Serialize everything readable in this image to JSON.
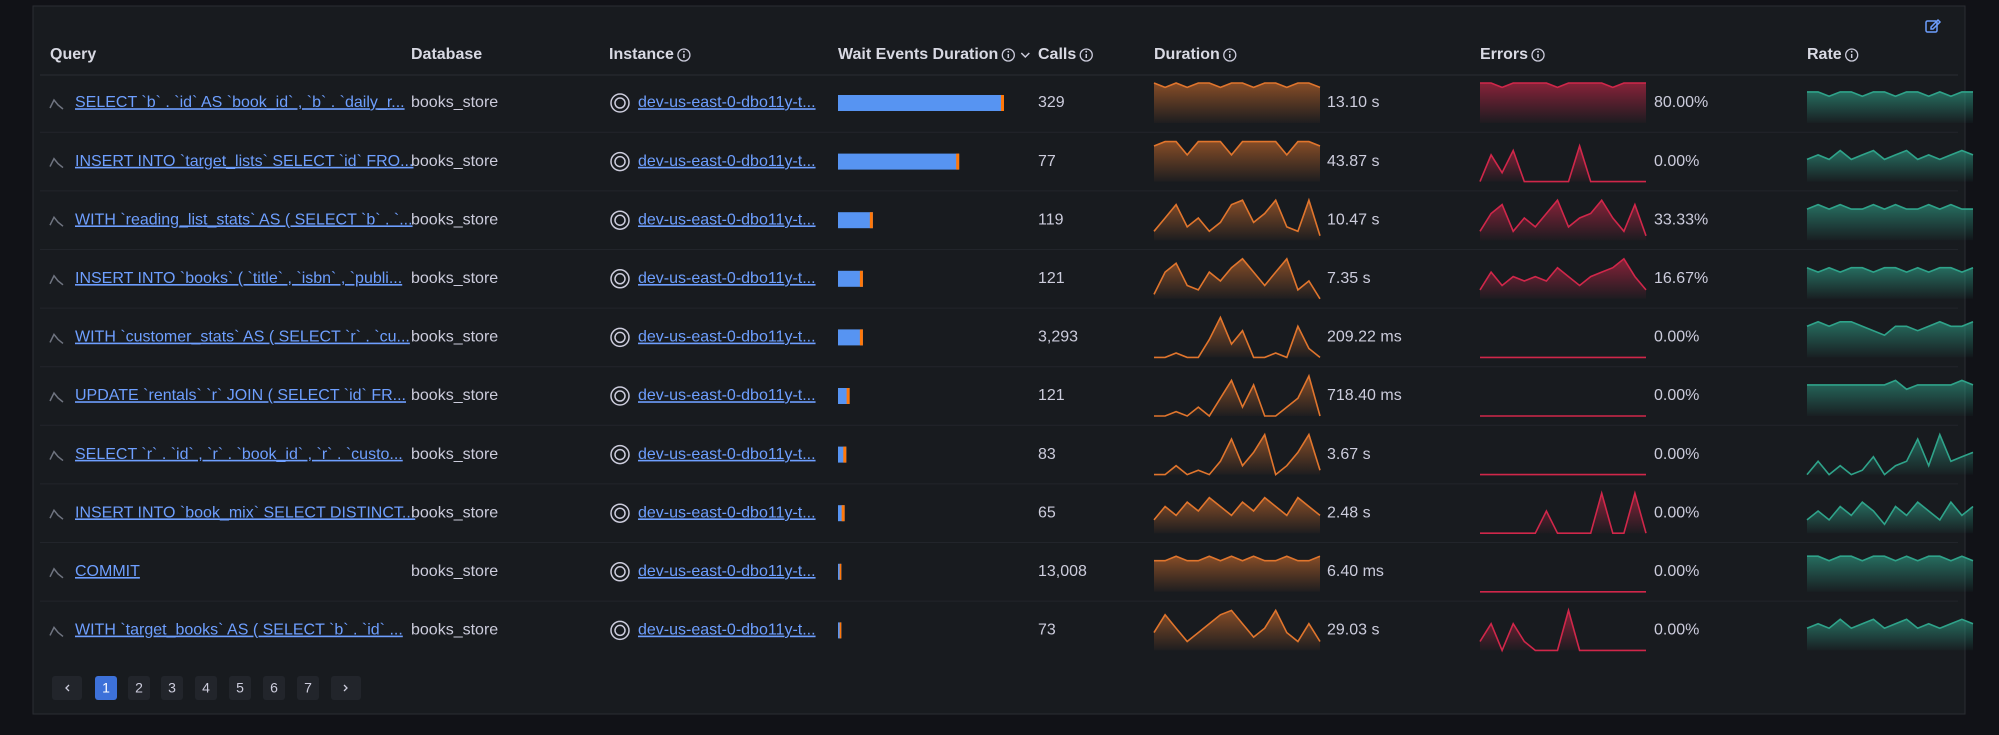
{
  "table": {
    "headers": [
      "Query",
      "Database",
      "Instance",
      "Wait Events Duration",
      "Calls",
      "Duration",
      "Errors",
      "Rate"
    ],
    "rows": [
      {
        "query": "SELECT `b` . `id` AS `book_id` , `b` . `daily_r...",
        "database": "books_store",
        "instance": "dev-us-east-0-dbo11y-t...",
        "wait_events_duration": 1.0,
        "calls": "329",
        "duration": "13.10 s",
        "duration_trend": [
          9,
          8,
          9,
          8,
          9,
          9,
          8,
          9,
          9,
          8,
          9,
          9,
          8,
          9,
          9,
          8
        ],
        "errors": "80.00%",
        "errors_trend": [
          9,
          9,
          8,
          9,
          9,
          9,
          9,
          8,
          9,
          9,
          9,
          9,
          8,
          9,
          9,
          9
        ],
        "rate_trend": [
          7,
          7,
          6,
          7,
          7,
          6,
          7,
          7,
          6,
          7,
          7,
          6,
          7,
          6,
          7,
          7
        ]
      },
      {
        "query": "INSERT INTO `target_lists` SELECT `id` FRO...",
        "database": "books_store",
        "instance": "dev-us-east-0-dbo11y-t...",
        "wait_events_duration": 0.73,
        "calls": "77",
        "duration": "43.87 s",
        "duration_trend": [
          8,
          9,
          9,
          6,
          9,
          9,
          9,
          6,
          9,
          9,
          9,
          9,
          6,
          9,
          9,
          8
        ],
        "errors": "0.00%",
        "errors_trend": [
          0,
          6,
          2,
          7,
          0,
          0,
          0,
          0,
          0,
          8,
          0,
          0,
          0,
          0,
          0,
          0
        ],
        "rate_trend": [
          5,
          6,
          5,
          7,
          5,
          6,
          7,
          5,
          6,
          7,
          5,
          6,
          5,
          6,
          7,
          6
        ]
      },
      {
        "query": "WITH `reading_list_stats` AS ( SELECT `b` . `...",
        "database": "books_store",
        "instance": "dev-us-east-0-dbo11y-t...",
        "wait_events_duration": 0.21,
        "calls": "119",
        "duration": "10.47 s",
        "duration_trend": [
          2,
          5,
          8,
          3,
          5,
          2,
          4,
          8,
          9,
          4,
          6,
          9,
          3,
          2,
          9,
          1
        ],
        "errors": "33.33%",
        "errors_trend": [
          2,
          6,
          8,
          2,
          5,
          3,
          6,
          9,
          3,
          5,
          6,
          9,
          5,
          2,
          8,
          1
        ],
        "rate_trend": [
          7,
          8,
          7,
          8,
          7,
          7,
          8,
          7,
          8,
          7,
          7,
          8,
          7,
          8,
          7,
          7
        ]
      },
      {
        "query": "INSERT INTO `books` ( `title` , `isbn` , `publi...",
        "database": "books_store",
        "instance": "dev-us-east-0-dbo11y-t...",
        "wait_events_duration": 0.15,
        "calls": "121",
        "duration": "7.35 s",
        "duration_trend": [
          1,
          6,
          8,
          3,
          2,
          6,
          4,
          7,
          9,
          6,
          3,
          6,
          9,
          2,
          4,
          0
        ],
        "errors": "16.67%",
        "errors_trend": [
          2,
          6,
          3,
          5,
          4,
          5,
          4,
          7,
          5,
          3,
          5,
          6,
          7,
          9,
          5,
          2
        ],
        "rate_trend": [
          7,
          6,
          7,
          6,
          7,
          7,
          6,
          7,
          7,
          6,
          7,
          6,
          7,
          7,
          6,
          7
        ]
      },
      {
        "query": "WITH `customer_stats` AS ( SELECT `r` . `cu...",
        "database": "books_store",
        "instance": "dev-us-east-0-dbo11y-t...",
        "wait_events_duration": 0.15,
        "calls": "3,293",
        "duration": "209.22 ms",
        "duration_trend": [
          0,
          0,
          1,
          0,
          0,
          4,
          9,
          3,
          6,
          0,
          0,
          1,
          0,
          7,
          2,
          0
        ],
        "errors": "0.00%",
        "errors_trend": [
          0,
          0,
          0,
          0,
          0,
          0,
          0,
          0,
          0,
          0,
          0,
          0,
          0,
          0,
          0,
          0
        ],
        "rate_trend": [
          7,
          8,
          7,
          8,
          8,
          7,
          6,
          5,
          7,
          7,
          6,
          7,
          8,
          7,
          7,
          8
        ]
      },
      {
        "query": "UPDATE `rentals` `r` JOIN ( SELECT `id` FR...",
        "database": "books_store",
        "instance": "dev-us-east-0-dbo11y-t...",
        "wait_events_duration": 0.07,
        "calls": "121",
        "duration": "718.40 ms",
        "duration_trend": [
          0,
          0,
          1,
          0,
          2,
          0,
          4,
          8,
          2,
          7,
          0,
          0,
          2,
          4,
          9,
          0
        ],
        "errors": "0.00%",
        "errors_trend": [
          0,
          0,
          0,
          0,
          0,
          0,
          0,
          0,
          0,
          0,
          0,
          0,
          0,
          0,
          0,
          0
        ],
        "rate_trend": [
          7,
          7,
          7,
          7,
          7,
          7,
          7,
          7,
          8,
          6,
          7,
          7,
          7,
          7,
          8,
          7
        ]
      },
      {
        "query": "SELECT `r` . `id` , `r` . `book_id` , `r` . `custo...",
        "database": "books_store",
        "instance": "dev-us-east-0-dbo11y-t...",
        "wait_events_duration": 0.05,
        "calls": "83",
        "duration": "3.67 s",
        "duration_trend": [
          0,
          0,
          2,
          0,
          1,
          0,
          3,
          8,
          2,
          5,
          9,
          0,
          2,
          5,
          9,
          1
        ],
        "errors": "0.00%",
        "errors_trend": [
          0,
          0,
          0,
          0,
          0,
          0,
          0,
          0,
          0,
          0,
          0,
          0,
          0,
          0,
          0,
          0
        ],
        "rate_trend": [
          0,
          3,
          0,
          2,
          0,
          1,
          4,
          0,
          2,
          3,
          8,
          2,
          9,
          3,
          4,
          5
        ]
      },
      {
        "query": "INSERT INTO `book_mix` SELECT DISTINCT...",
        "database": "books_store",
        "instance": "dev-us-east-0-dbo11y-t...",
        "wait_events_duration": 0.04,
        "calls": "65",
        "duration": "2.48 s",
        "duration_trend": [
          3,
          6,
          4,
          7,
          5,
          8,
          6,
          4,
          7,
          5,
          8,
          6,
          4,
          8,
          6,
          4
        ],
        "errors": "0.00%",
        "errors_trend": [
          0,
          0,
          0,
          0,
          0,
          0,
          5,
          0,
          0,
          0,
          0,
          9,
          0,
          0,
          9,
          0
        ],
        "rate_trend": [
          3,
          5,
          3,
          6,
          4,
          7,
          5,
          2,
          6,
          4,
          7,
          5,
          3,
          7,
          4,
          6
        ]
      },
      {
        "query": "COMMIT",
        "database": "books_store",
        "instance": "dev-us-east-0-dbo11y-t...",
        "wait_events_duration": 0.02,
        "calls": "13,008",
        "duration": "6.40 ms",
        "duration_trend": [
          7,
          7,
          8,
          7,
          7,
          8,
          7,
          8,
          7,
          8,
          7,
          7,
          8,
          7,
          7,
          8
        ],
        "errors": "0.00%",
        "errors_trend": [
          0,
          0,
          0,
          0,
          0,
          0,
          0,
          0,
          0,
          0,
          0,
          0,
          0,
          0,
          0,
          0
        ],
        "rate_trend": [
          8,
          8,
          7,
          8,
          8,
          7,
          8,
          8,
          7,
          8,
          7,
          8,
          8,
          7,
          8,
          7
        ]
      },
      {
        "query": "WITH `target_books` AS ( SELECT `b` . `id` ...",
        "database": "books_store",
        "instance": "dev-us-east-0-dbo11y-t...",
        "wait_events_duration": 0.02,
        "calls": "73",
        "duration": "29.03 s",
        "duration_trend": [
          4,
          8,
          5,
          2,
          4,
          6,
          8,
          9,
          6,
          3,
          5,
          9,
          4,
          2,
          6,
          2
        ],
        "errors": "0.00%",
        "errors_trend": [
          2,
          6,
          0,
          6,
          2,
          0,
          0,
          0,
          9,
          0,
          0,
          0,
          0,
          0,
          0,
          0
        ],
        "rate_trend": [
          5,
          6,
          5,
          7,
          5,
          6,
          7,
          5,
          6,
          7,
          5,
          6,
          5,
          6,
          7,
          6
        ]
      }
    ]
  },
  "pagination": {
    "pages": [
      "1",
      "2",
      "3",
      "4",
      "5",
      "6",
      "7"
    ],
    "current": 0
  }
}
